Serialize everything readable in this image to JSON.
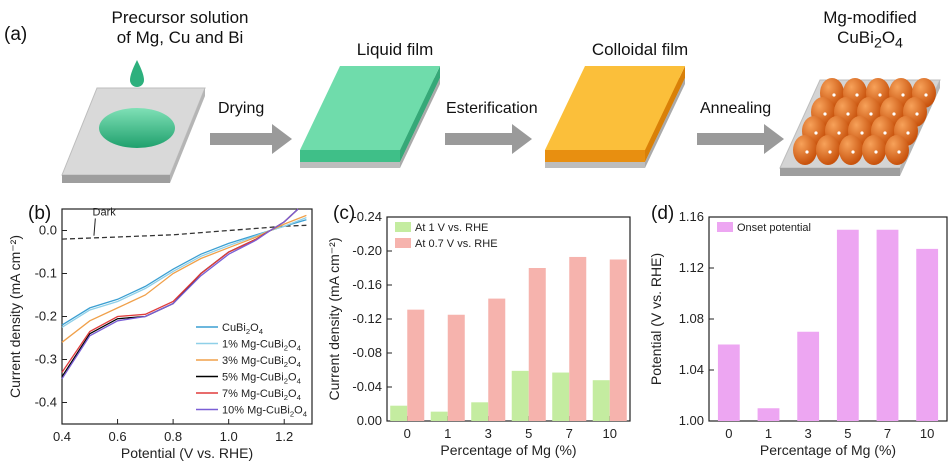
{
  "panel_a": {
    "label": "(a)",
    "stages": [
      "Precursor solution",
      "of Mg, Cu and Bi",
      "Liquid film",
      "Colloidal film",
      "Mg-modified",
      "CuBi2O4"
    ],
    "arrows": [
      "Drying",
      "Esterification",
      "Annealing"
    ],
    "colors": {
      "green": "#4fcf96",
      "orange": "#f5a21b",
      "particle": "#e8701c",
      "substrate": "#d4d4d4"
    }
  },
  "chart_data": [
    {
      "panel": "(b)",
      "type": "line",
      "xlabel": "Potential (V vs. RHE)",
      "ylabel": "Current density (mA cm⁻²)",
      "xlim": [
        0.4,
        1.3
      ],
      "ylim": [
        -0.45,
        0.05
      ],
      "xticks": [
        "0.4",
        "0.6",
        "0.8",
        "1.0",
        "1.2"
      ],
      "yticks": [
        "0.0",
        "-0.1",
        "-0.2",
        "-0.3",
        "-0.4"
      ],
      "annotation": "Dark",
      "legend_position": "bottom-right",
      "series": [
        {
          "name": "Dark",
          "color": "#333333",
          "dashed": true,
          "points": [
            [
              0.4,
              -0.02
            ],
            [
              0.6,
              -0.015
            ],
            [
              0.8,
              -0.01
            ],
            [
              1.0,
              0.0
            ],
            [
              1.1,
              0.005
            ],
            [
              1.2,
              0.01
            ],
            [
              1.28,
              0.012
            ]
          ]
        },
        {
          "name": "CuBi2O4",
          "color": "#3b9fd2",
          "points": [
            [
              0.4,
              -0.22
            ],
            [
              0.5,
              -0.18
            ],
            [
              0.6,
              -0.16
            ],
            [
              0.7,
              -0.13
            ],
            [
              0.8,
              -0.09
            ],
            [
              0.9,
              -0.055
            ],
            [
              1.0,
              -0.03
            ],
            [
              1.1,
              -0.01
            ],
            [
              1.15,
              0.0
            ],
            [
              1.2,
              0.01
            ],
            [
              1.28,
              0.025
            ]
          ]
        },
        {
          "name": "1% Mg-CuBi2O4",
          "color": "#8fd0e8",
          "points": [
            [
              0.4,
              -0.225
            ],
            [
              0.5,
              -0.185
            ],
            [
              0.6,
              -0.165
            ],
            [
              0.7,
              -0.135
            ],
            [
              0.8,
              -0.095
            ],
            [
              0.9,
              -0.06
            ],
            [
              1.0,
              -0.035
            ],
            [
              1.1,
              -0.012
            ],
            [
              1.15,
              0.0
            ],
            [
              1.2,
              0.01
            ],
            [
              1.28,
              0.03
            ]
          ]
        },
        {
          "name": "3% Mg-CuBi2O4",
          "color": "#f0a04a",
          "points": [
            [
              0.4,
              -0.26
            ],
            [
              0.5,
              -0.21
            ],
            [
              0.6,
              -0.18
            ],
            [
              0.7,
              -0.15
            ],
            [
              0.8,
              -0.1
            ],
            [
              0.9,
              -0.065
            ],
            [
              1.0,
              -0.04
            ],
            [
              1.1,
              -0.015
            ],
            [
              1.15,
              0.0
            ],
            [
              1.2,
              0.015
            ],
            [
              1.28,
              0.035
            ]
          ]
        },
        {
          "name": "5% Mg-CuBi2O4",
          "color": "#000000",
          "points": [
            [
              0.4,
              -0.34
            ],
            [
              0.5,
              -0.24
            ],
            [
              0.6,
              -0.205
            ],
            [
              0.7,
              -0.2
            ],
            [
              0.8,
              -0.17
            ],
            [
              0.9,
              -0.1
            ],
            [
              1.0,
              -0.05
            ],
            [
              1.1,
              -0.02
            ],
            [
              1.15,
              0.0
            ],
            [
              1.2,
              0.02
            ],
            [
              1.25,
              0.05
            ]
          ]
        },
        {
          "name": "7% Mg-CuBi2O4",
          "color": "#e03c3c",
          "points": [
            [
              0.4,
              -0.33
            ],
            [
              0.5,
              -0.235
            ],
            [
              0.6,
              -0.2
            ],
            [
              0.7,
              -0.195
            ],
            [
              0.8,
              -0.165
            ],
            [
              0.9,
              -0.1
            ],
            [
              1.0,
              -0.05
            ],
            [
              1.1,
              -0.02
            ],
            [
              1.15,
              0.0
            ],
            [
              1.2,
              0.02
            ],
            [
              1.25,
              0.05
            ]
          ]
        },
        {
          "name": "10% Mg-CuBi2O4",
          "color": "#7a5fd6",
          "points": [
            [
              0.4,
              -0.345
            ],
            [
              0.5,
              -0.245
            ],
            [
              0.6,
              -0.21
            ],
            [
              0.7,
              -0.2
            ],
            [
              0.8,
              -0.17
            ],
            [
              0.9,
              -0.105
            ],
            [
              1.0,
              -0.055
            ],
            [
              1.1,
              -0.022
            ],
            [
              1.15,
              0.0
            ],
            [
              1.2,
              0.02
            ],
            [
              1.25,
              0.05
            ]
          ]
        }
      ]
    },
    {
      "panel": "(c)",
      "type": "bar",
      "xlabel": "Percentage of Mg (%)",
      "ylabel": "Current density (mA cm⁻²)",
      "categories": [
        "0",
        "1",
        "3",
        "5",
        "7",
        "10"
      ],
      "ylim": [
        0,
        -0.24
      ],
      "yticks": [
        "0.00",
        "-0.04",
        "-0.08",
        "-0.12",
        "-0.16",
        "-0.20",
        "-0.24"
      ],
      "legend_position": "top-left",
      "series": [
        {
          "name": "At 1 V vs. RHE",
          "color": "#c4eca0",
          "values": [
            -0.018,
            -0.011,
            -0.022,
            -0.059,
            -0.057,
            -0.048
          ]
        },
        {
          "name": "At 0.7 V vs. RHE",
          "color": "#f6b3ad",
          "values": [
            -0.131,
            -0.125,
            -0.144,
            -0.18,
            -0.193,
            -0.19
          ]
        }
      ]
    },
    {
      "panel": "(d)",
      "type": "bar",
      "xlabel": "Percentage of Mg (%)",
      "ylabel": "Potential (V vs. RHE)",
      "categories": [
        "0",
        "1",
        "3",
        "5",
        "7",
        "10"
      ],
      "ylim": [
        1.0,
        1.16
      ],
      "yticks": [
        "1.00",
        "1.04",
        "1.08",
        "1.12",
        "1.16"
      ],
      "legend_position": "top-left",
      "series": [
        {
          "name": "Onset potential",
          "color": "#eda6f2",
          "values": [
            1.06,
            1.01,
            1.07,
            1.15,
            1.15,
            1.135
          ]
        }
      ]
    }
  ]
}
